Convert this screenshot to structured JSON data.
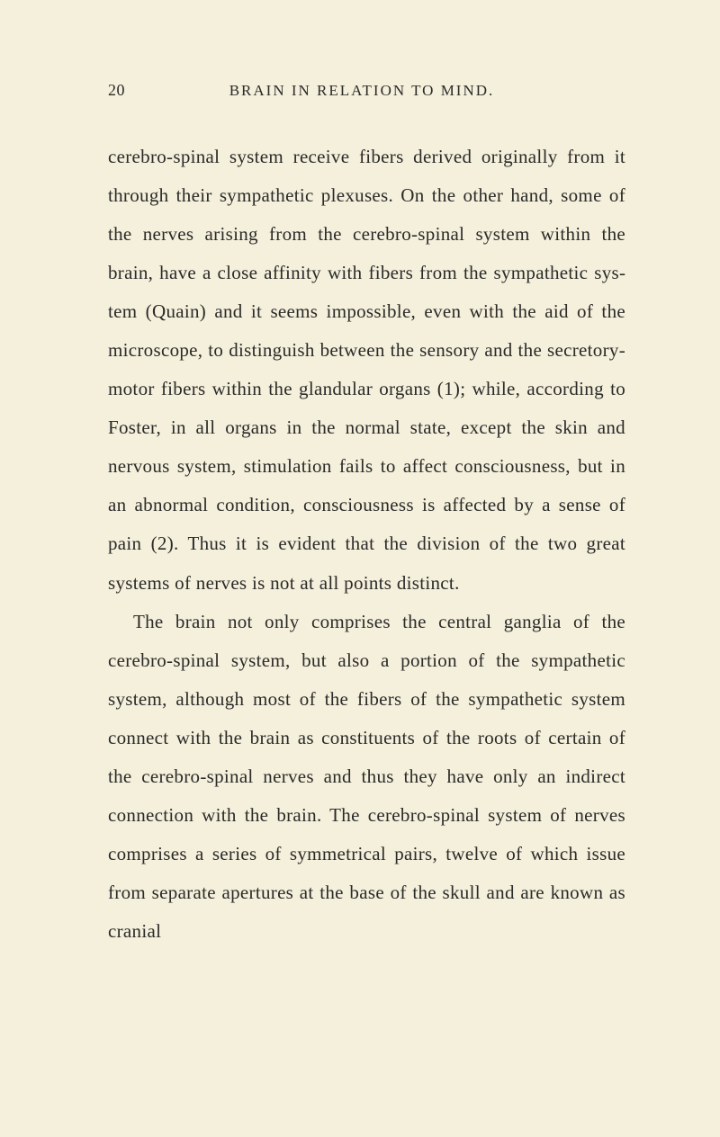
{
  "page": {
    "number": "20",
    "running_title": "BRAIN IN RELATION TO MIND.",
    "background_color": "#f5f0dc",
    "text_color": "#2a2a28",
    "font_family": "Georgia, 'Times New Roman', serif",
    "body_fontsize": 21,
    "line_height": 2.05,
    "header_fontsize": 17
  },
  "paragraphs": [
    {
      "text": "cerebro-spinal system receive fibers derived origin­ally from it through their sympathetic plexuses. On the other hand, some of the nerves arising from the cerebro-spinal system within the brain, have a close affinity with fibers from the sympathetic sys­tem (Quain) and it seems impossible, even with the aid of the microscope, to distinguish between the sensory and the secretory-motor fibers within the glandular organs (1); while, according to Foster, in all organs in the normal state, except the skin and nervous system, stimulation fails to affect conscious­ness, but in an abnormal condition, consciousness is affected by a sense of pain (2). Thus it is evi­dent that the division of the two great systems of nerves is not at all points distinct.",
      "indented": false
    },
    {
      "text": "The brain not only comprises the central ganglia of the cerebro-spinal system, but also a portion of the sympathetic system, although most of the fibers of the sympathetic system connect with the brain as constituents of the roots of certain of the cerebro-spinal nerves and thus they have only an indirect connection with the brain. The cerebro-spinal sys­tem of nerves comprises a series of symmetrical pairs, twelve of which issue from separate apertures at the base of the skull and are known as cranial",
      "indented": true
    }
  ]
}
